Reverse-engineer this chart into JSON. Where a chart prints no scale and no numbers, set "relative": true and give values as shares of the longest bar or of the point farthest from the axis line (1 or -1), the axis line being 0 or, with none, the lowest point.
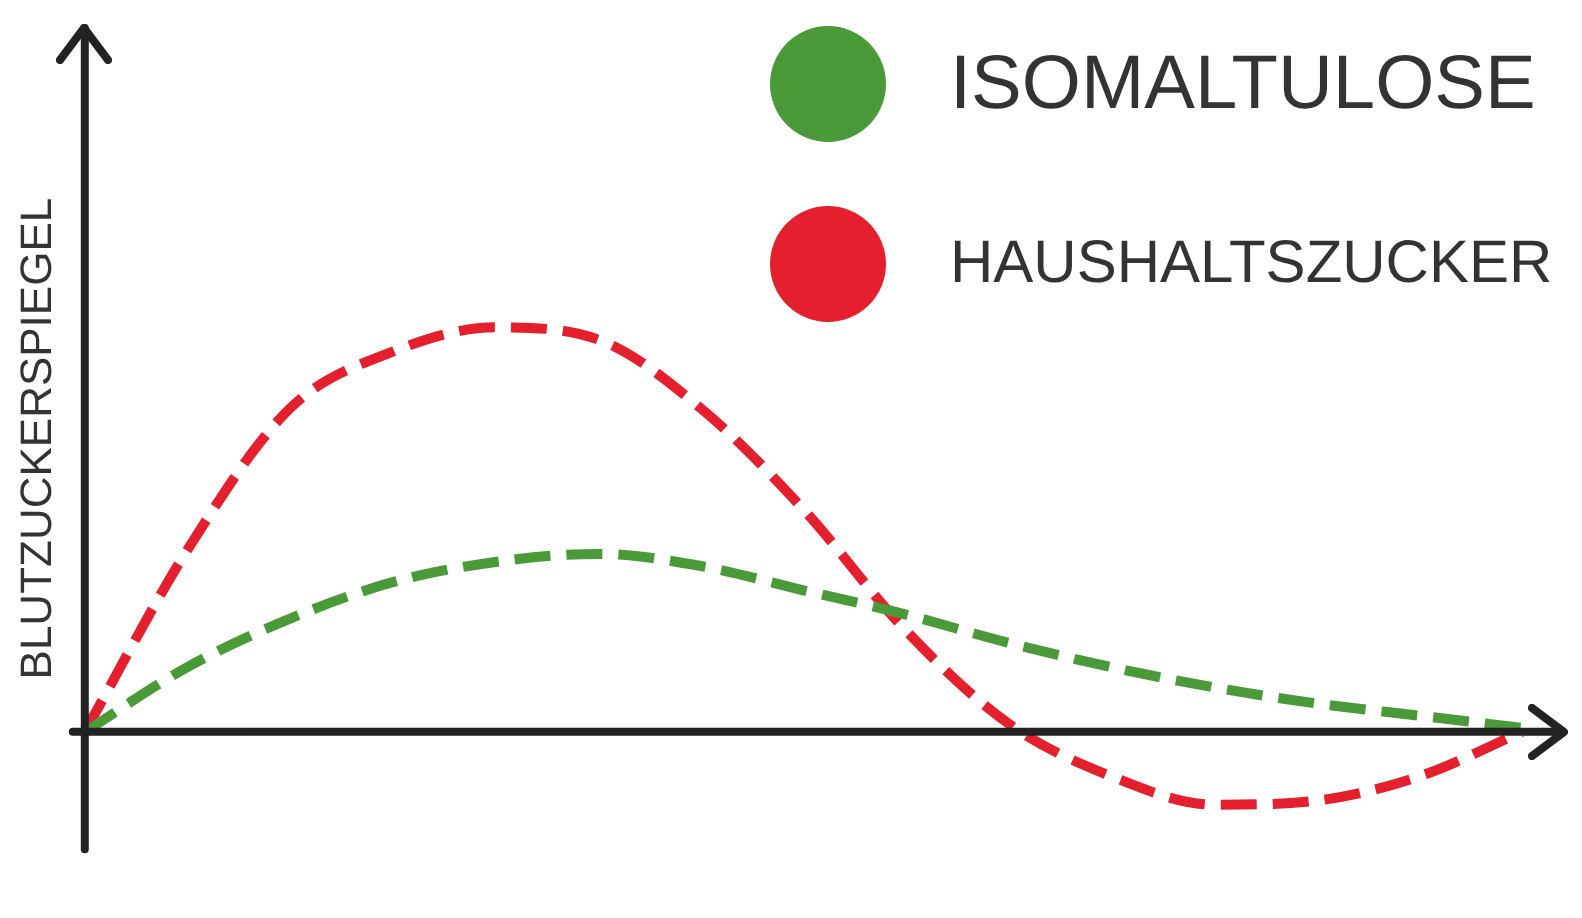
{
  "chart_data": {
    "type": "line",
    "ylabel": "BLUTZUCKERSPIEGEL",
    "relative": true,
    "legend": "top right",
    "line_style": "dashed",
    "marker": "none",
    "grid": false,
    "categories": [
      null,
      null,
      null,
      null,
      null,
      null,
      null,
      null,
      null,
      null,
      null,
      null,
      null,
      null,
      null
    ],
    "series": [
      {
        "name": "ISOMALTULOSE",
        "color": "#4a9a3a",
        "values": [
          0,
          0.16,
          0.28,
          0.37,
          0.42,
          0.44,
          0.41,
          0.35,
          0.29,
          0.22,
          0.16,
          0.11,
          0.07,
          0.04,
          0.01
        ]
      },
      {
        "name": "HAUSHALTSZUCKER",
        "color": "#e5202e",
        "values": [
          0,
          0.45,
          0.8,
          0.94,
          1.0,
          0.97,
          0.8,
          0.55,
          0.25,
          0.02,
          -0.11,
          -0.18,
          -0.17,
          -0.11,
          0
        ]
      }
    ]
  }
}
